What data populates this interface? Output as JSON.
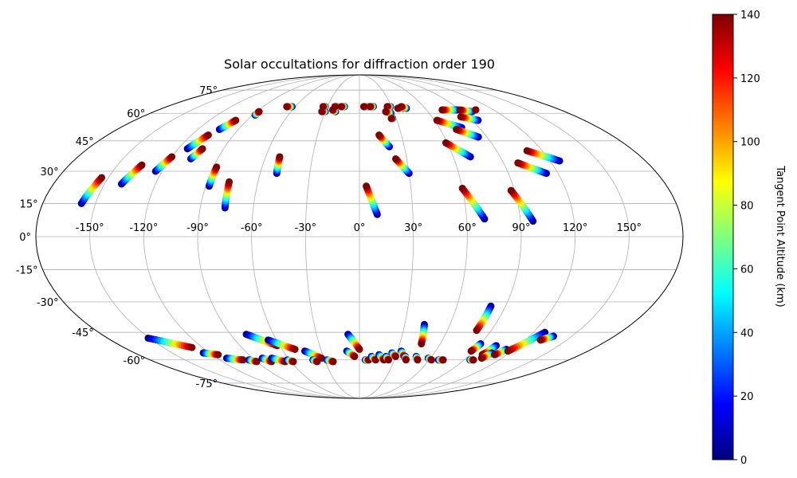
{
  "chart_data": {
    "type": "scatter",
    "projection": "mollweide",
    "title": "Solar occultations for diffraction order 190",
    "lon_ticks": [
      -150,
      -120,
      -90,
      -60,
      -30,
      0,
      30,
      60,
      90,
      120,
      150
    ],
    "lon_tick_labels": [
      "-150°",
      "-120°",
      "-90°",
      "-60°",
      "-30°",
      "0°",
      "30°",
      "60°",
      "90°",
      "120°",
      "150°"
    ],
    "lat_ticks": [
      75,
      60,
      45,
      30,
      15,
      0,
      -15,
      -30,
      -45,
      -60,
      -75
    ],
    "lat_tick_labels": [
      "75°",
      "60°",
      "45°",
      "30°",
      "15°",
      "0°",
      "-15°",
      "-30°",
      "-45°",
      "-60°",
      "-75°"
    ],
    "grid": true,
    "colorbar": {
      "label": "Tangent Point Altitude (km)",
      "range": [
        0,
        140
      ],
      "ticks": [
        0,
        20,
        40,
        60,
        80,
        100,
        120,
        140
      ],
      "tick_labels": [
        "0",
        "20",
        "40",
        "60",
        "80",
        "100",
        "120",
        "140"
      ],
      "colormap": "jet"
    },
    "series": [
      {
        "name": "tracks",
        "tracks": [
          {
            "lon0": -158,
            "lat0": 15,
            "lon1": -154,
            "lat1": 27
          },
          {
            "lon0": -140,
            "lat0": 24,
            "lon1": -135,
            "lat1": 33
          },
          {
            "lon0": -124,
            "lat0": 30,
            "lon1": -120,
            "lat1": 37
          },
          {
            "lon0": -114,
            "lat0": 41,
            "lon1": -108,
            "lat1": 48
          },
          {
            "lon0": -104,
            "lat0": 51,
            "lon1": -99,
            "lat1": 56
          },
          {
            "lon0": -107,
            "lat0": 36,
            "lon1": -104,
            "lat1": 41
          },
          {
            "lon0": -88,
            "lat0": 23,
            "lon1": -88,
            "lat1": 32
          },
          {
            "lon0": -88,
            "lat0": 59,
            "lon1": -88,
            "lat1": 61
          },
          {
            "lon0": -76,
            "lat0": 13,
            "lon1": -77,
            "lat1": 25
          },
          {
            "lon0": -50,
            "lat0": 29,
            "lon1": -51,
            "lat1": 37
          },
          {
            "lon0": -63,
            "lat0": 64,
            "lon1": -68,
            "lat1": 64
          },
          {
            "lon0": -30,
            "lat0": 61,
            "lon1": -33,
            "lat1": 61
          },
          {
            "lon0": -32,
            "lat0": 64,
            "lon1": -34,
            "lat1": 64
          },
          {
            "lon0": -21,
            "lat0": 61,
            "lon1": -24,
            "lat1": 62
          },
          {
            "lon0": -21,
            "lat0": 64,
            "lon1": -23,
            "lat1": 64
          },
          {
            "lon0": -14,
            "lat0": 64,
            "lon1": -17,
            "lat1": 64
          },
          {
            "lon0": 8,
            "lat0": 64,
            "lon1": 4,
            "lat1": 64
          },
          {
            "lon0": 13,
            "lat0": 64,
            "lon1": 10,
            "lat1": 64
          },
          {
            "lon0": 29,
            "lat0": 64,
            "lon1": 26,
            "lat1": 64
          },
          {
            "lon0": 27,
            "lat0": 60,
            "lon1": 23,
            "lat1": 61
          },
          {
            "lon0": 27,
            "lat0": 57,
            "lon1": 26,
            "lat1": 57
          },
          {
            "lon0": 40,
            "lat0": 63,
            "lon1": 35,
            "lat1": 63
          },
          {
            "lon0": 43,
            "lat0": 63,
            "lon1": 39,
            "lat1": 64
          },
          {
            "lon0": 10,
            "lat0": 10,
            "lon1": 4,
            "lat1": 23
          },
          {
            "lon0": 20,
            "lat0": 42,
            "lon1": 14,
            "lat1": 48
          },
          {
            "lon0": 30,
            "lat0": 29,
            "lon1": 23,
            "lat1": 36
          },
          {
            "lon0": 70,
            "lat0": 8,
            "lon1": 60,
            "lat1": 22
          },
          {
            "lon0": 71,
            "lat0": 37,
            "lon1": 59,
            "lat1": 44
          },
          {
            "lon0": 77,
            "lat0": 52,
            "lon1": 62,
            "lat1": 56
          },
          {
            "lon0": 84,
            "lat0": 47,
            "lon1": 72,
            "lat1": 51
          },
          {
            "lon0": 88,
            "lat0": 62,
            "lon1": 74,
            "lat1": 62
          },
          {
            "lon0": 95,
            "lat0": 56,
            "lon1": 84,
            "lat1": 58
          },
          {
            "lon0": 99,
            "lat0": 61,
            "lon1": 90,
            "lat1": 62
          },
          {
            "lon0": 104,
            "lat0": 62,
            "lon1": 104,
            "lat1": 62
          },
          {
            "lon0": 97,
            "lat0": 7,
            "lon1": 88,
            "lat1": 21
          },
          {
            "lon0": 113,
            "lat0": 29,
            "lon1": 99,
            "lat1": 34
          },
          {
            "lon0": 126,
            "lat0": 35,
            "lon1": 110,
            "lat1": 40
          },
          {
            "lon0": -151,
            "lat0": -48,
            "lon1": -128,
            "lat1": -53
          },
          {
            "lon0": -125,
            "lat0": -56,
            "lon1": -115,
            "lat1": -57
          },
          {
            "lon0": -112,
            "lat0": -59,
            "lon1": -100,
            "lat1": -60
          },
          {
            "lon0": -95,
            "lat0": -60,
            "lon1": -90,
            "lat1": -61
          },
          {
            "lon0": -82,
            "lat0": -59,
            "lon1": -77,
            "lat1": -61
          },
          {
            "lon0": -79,
            "lat0": -46,
            "lon1": -62,
            "lat1": -52
          },
          {
            "lon0": -74,
            "lat0": -59,
            "lon1": -65,
            "lat1": -61
          },
          {
            "lon0": -66,
            "lat0": -49,
            "lon1": -50,
            "lat1": -54
          },
          {
            "lon0": -62,
            "lat0": -60,
            "lon1": -58,
            "lat1": -61
          },
          {
            "lon0": -43,
            "lat0": -55,
            "lon1": -32,
            "lat1": -59
          },
          {
            "lon0": -40,
            "lat0": -60,
            "lon1": -37,
            "lat1": -61
          },
          {
            "lon0": -28,
            "lat0": -60,
            "lon1": -23,
            "lat1": -61
          },
          {
            "lon0": -10,
            "lat0": -55,
            "lon1": -4,
            "lat1": -58
          },
          {
            "lon0": -8,
            "lat0": -46,
            "lon1": 0,
            "lat1": -54
          },
          {
            "lon0": 5,
            "lat0": -60,
            "lon1": 8,
            "lat1": -60
          },
          {
            "lon0": 10,
            "lat0": -58,
            "lon1": 14,
            "lat1": -60
          },
          {
            "lon0": 16,
            "lat0": -57,
            "lon1": 21,
            "lat1": -60
          },
          {
            "lon0": 22,
            "lat0": -58,
            "lon1": 25,
            "lat1": -60
          },
          {
            "lon0": 26,
            "lat0": -56,
            "lon1": 30,
            "lat1": -58
          },
          {
            "lon0": 33,
            "lat0": -55,
            "lon1": 37,
            "lat1": -58
          },
          {
            "lon0": 38,
            "lat0": -58,
            "lon1": 40,
            "lat1": -60
          },
          {
            "lon0": 43,
            "lat0": -41,
            "lon1": 46,
            "lat1": -51
          },
          {
            "lon0": 47,
            "lat0": -58,
            "lon1": 50,
            "lat1": -60
          },
          {
            "lon0": 58,
            "lat0": -59,
            "lon1": 62,
            "lat1": -60
          },
          {
            "lon0": 68,
            "lat0": -60,
            "lon1": 72,
            "lat1": -60
          },
          {
            "lon0": 81,
            "lat0": -32,
            "lon1": 80,
            "lat1": -44
          },
          {
            "lon0": 90,
            "lat0": -51,
            "lon1": 88,
            "lat1": -55
          },
          {
            "lon0": 95,
            "lat0": -60,
            "lon1": 98,
            "lat1": -60
          },
          {
            "lon0": 103,
            "lat0": -52,
            "lon1": 100,
            "lat1": -57
          },
          {
            "lon0": 106,
            "lat0": -56,
            "lon1": 103,
            "lat1": -59
          },
          {
            "lon0": 114,
            "lat0": -54,
            "lon1": 110,
            "lat1": -57
          },
          {
            "lon0": 128,
            "lat0": -45,
            "lon1": 117,
            "lat1": -55
          },
          {
            "lon0": 137,
            "lat0": -47,
            "lon1": 131,
            "lat1": -49
          }
        ]
      }
    ]
  }
}
